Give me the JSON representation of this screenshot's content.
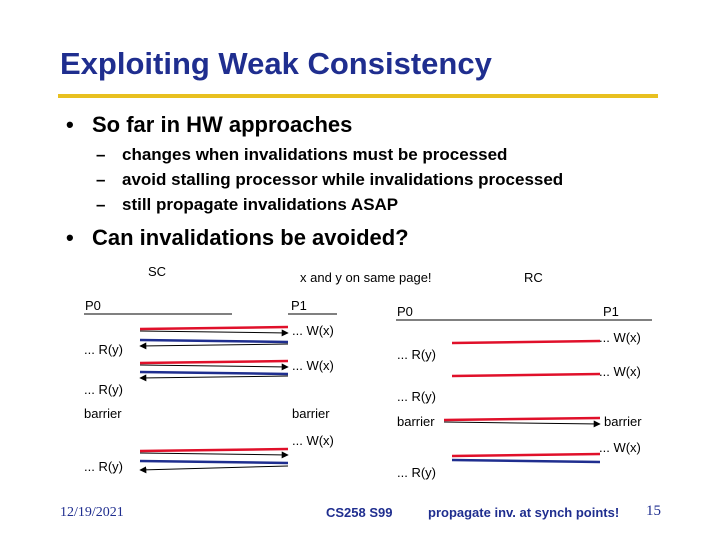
{
  "title": "Exploiting Weak Consistency",
  "bullets": [
    {
      "text": "So far in HW approaches",
      "sub": [
        "changes when invalidations must be processed",
        "avoid stalling processor while invalidations processed",
        "still propagate invalidations ASAP"
      ]
    },
    {
      "text": "Can invalidations be avoided?"
    }
  ],
  "bullet_glyph": "•",
  "dash_glyph": "–",
  "diagram": {
    "sc_label": "SC",
    "rc_label": "RC",
    "note": "x and y on same page!",
    "sc": {
      "p0": "P0",
      "p1": "P1",
      "ops": [
        "... W(x)",
        "... R(y)",
        "... W(x)",
        "... R(y)",
        "barrier",
        "barrier",
        "... W(x)",
        "... R(y)"
      ]
    },
    "rc": {
      "p0": "P0",
      "p1": "P1",
      "ops": [
        "... W(x)",
        "... R(y)",
        "... W(x)",
        "... R(y)",
        "barrier",
        "barrier",
        "... W(x)",
        "... R(y)"
      ]
    },
    "colors": {
      "red": "#e0102a",
      "blue": "#1f2e8f"
    }
  },
  "footer": {
    "date": "12/19/2021",
    "course": "CS258 S99",
    "note": "propagate inv. at synch points!",
    "page": "15"
  }
}
